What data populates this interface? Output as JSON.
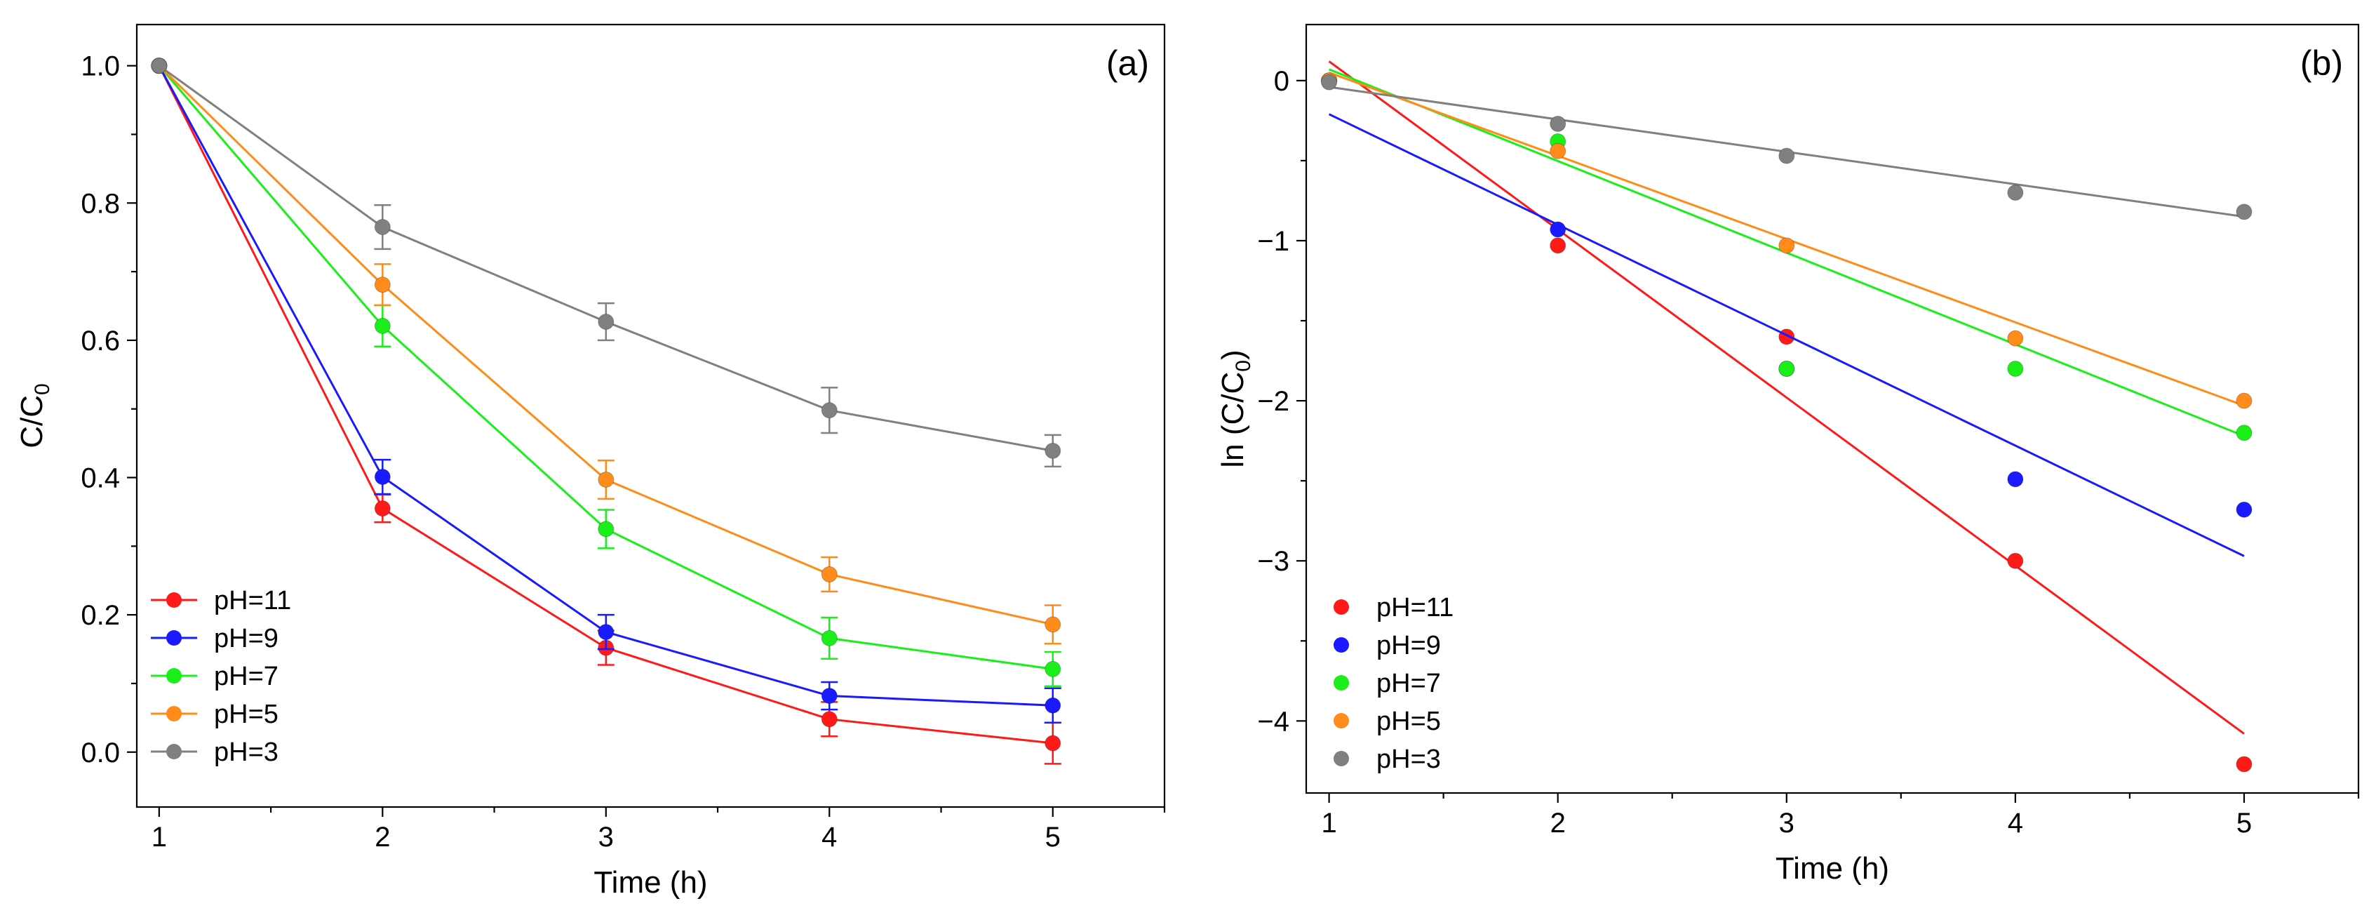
{
  "chart_data": [
    {
      "type": "line",
      "panel_label": "(a)",
      "xlabel": "Time (h)",
      "ylabel_main": "C/C",
      "ylabel_sub": "0",
      "xlim": [
        0.9,
        5.5
      ],
      "ylim": [
        -0.08,
        1.06
      ],
      "xticks": [
        "1",
        "2",
        "3",
        "4",
        "5"
      ],
      "yticks": [
        "0.0",
        "0.2",
        "0.4",
        "0.6",
        "0.8",
        "1.0"
      ],
      "legend_position": "lower-left",
      "x": [
        1,
        2,
        3,
        4,
        5
      ],
      "series": [
        {
          "name": "pH=11",
          "color": "#ff1a1a",
          "values": [
            1.0,
            0.355,
            0.152,
            0.048,
            0.013
          ],
          "errors": [
            0.0,
            0.02,
            0.025,
            0.025,
            0.03
          ]
        },
        {
          "name": "pH=9",
          "color": "#1a1aff",
          "values": [
            1.0,
            0.401,
            0.175,
            0.082,
            0.068
          ],
          "errors": [
            0.0,
            0.025,
            0.025,
            0.02,
            0.025
          ]
        },
        {
          "name": "pH=7",
          "color": "#1aef1a",
          "values": [
            1.0,
            0.621,
            0.325,
            0.166,
            0.121
          ],
          "errors": [
            0.0,
            0.03,
            0.028,
            0.03,
            0.025
          ]
        },
        {
          "name": "pH=5",
          "color": "#ff8c1a",
          "values": [
            1.0,
            0.681,
            0.397,
            0.259,
            0.186
          ],
          "errors": [
            0.0,
            0.03,
            0.028,
            0.025,
            0.028
          ]
        },
        {
          "name": "pH=3",
          "color": "#808080",
          "values": [
            1.0,
            0.765,
            0.627,
            0.498,
            0.439
          ],
          "errors": [
            0.0,
            0.032,
            0.027,
            0.033,
            0.023
          ]
        }
      ]
    },
    {
      "type": "scatter",
      "panel_label": "(b)",
      "xlabel": "Time (h)",
      "ylabel_main": "ln (C/C",
      "ylabel_sub": "0",
      "ylabel_end": ")",
      "xlim": [
        0.9,
        5.5
      ],
      "ylim": [
        -4.45,
        0.35
      ],
      "xticks": [
        "1",
        "2",
        "3",
        "4",
        "5"
      ],
      "yticks": [
        "0",
        "−1",
        "−2",
        "−3",
        "−4"
      ],
      "legend_position": "lower-left",
      "x": [
        1,
        2,
        3,
        4,
        5
      ],
      "series": [
        {
          "name": "pH=11",
          "color": "#ff1a1a",
          "values": [
            0.0,
            -1.03,
            -1.6,
            -3.0,
            -4.27
          ],
          "fit": [
            [
              1,
              0.12
            ],
            [
              5,
              -4.08
            ]
          ]
        },
        {
          "name": "pH=9",
          "color": "#1a1aff",
          "values": [
            0.0,
            -0.93,
            -1.8,
            -2.49,
            -2.68
          ],
          "fit": [
            [
              1,
              -0.21
            ],
            [
              5,
              -2.97
            ]
          ]
        },
        {
          "name": "pH=7",
          "color": "#1aef1a",
          "values": [
            0.0,
            -0.38,
            -1.8,
            -1.8,
            -2.2
          ],
          "fit": [
            [
              1,
              0.07
            ],
            [
              5,
              -2.22
            ]
          ]
        },
        {
          "name": "pH=5",
          "color": "#ff8c1a",
          "values": [
            0.0,
            -0.44,
            -1.03,
            -1.61,
            -2.0
          ],
          "fit": [
            [
              1,
              0.05
            ],
            [
              5,
              -2.03
            ]
          ]
        },
        {
          "name": "pH=3",
          "color": "#808080",
          "values": [
            -0.01,
            -0.27,
            -0.47,
            -0.7,
            -0.82
          ],
          "fit": [
            [
              1,
              -0.04
            ],
            [
              5,
              -0.85
            ]
          ]
        }
      ]
    }
  ]
}
